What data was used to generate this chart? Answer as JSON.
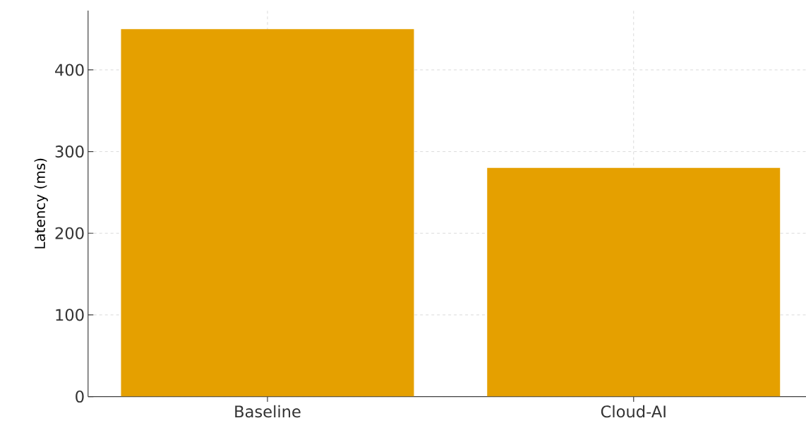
{
  "chart_data": {
    "type": "bar",
    "ylabel": "Latency (ms)",
    "categories": [
      "Baseline",
      "Cloud-AI"
    ],
    "values": [
      450,
      280
    ],
    "color": "#e5a000",
    "ylim": [
      0,
      472.5
    ],
    "yticks": [
      0,
      100,
      200,
      300,
      400
    ],
    "grid": true
  }
}
